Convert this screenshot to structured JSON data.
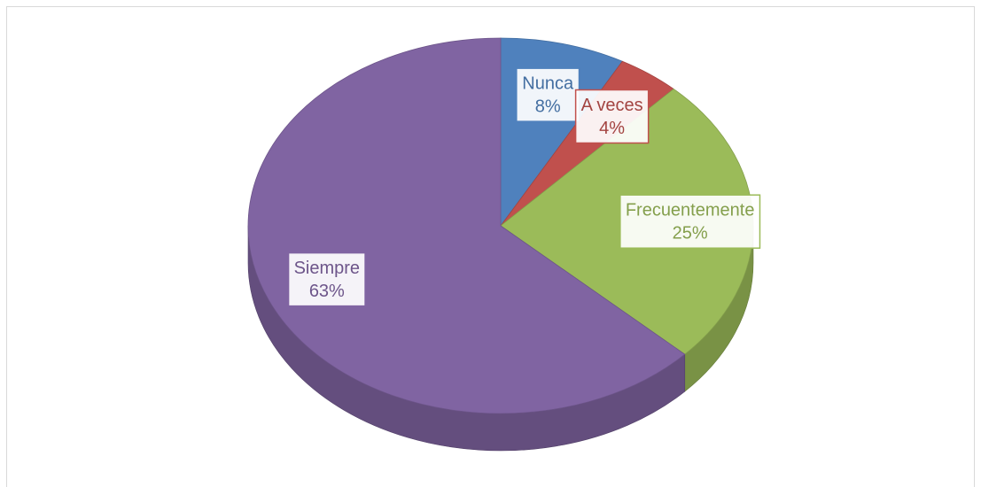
{
  "chart_data": {
    "type": "pie3d",
    "categories": [
      "Nunca",
      "A veces",
      "Frecuentemente",
      "Siempre"
    ],
    "values": [
      8,
      4,
      25,
      63
    ],
    "value_labels": [
      "8%",
      "4%",
      "25%",
      "63%"
    ],
    "colors": [
      "#4f81bd",
      "#c0504d",
      "#9bbb59",
      "#8064a2"
    ]
  }
}
